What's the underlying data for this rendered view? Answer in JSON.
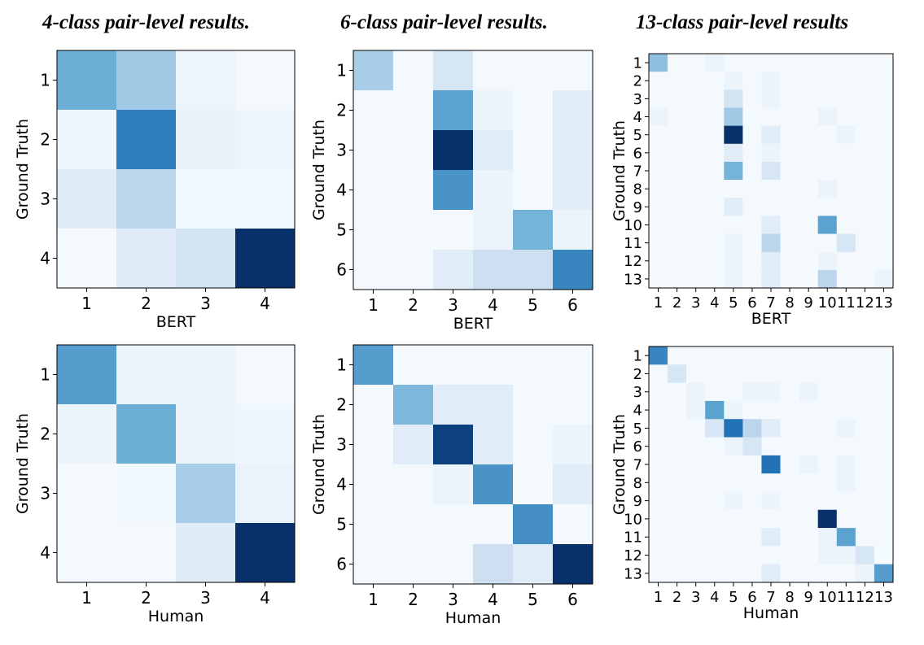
{
  "titles": {
    "col1": "4-class pair-level results.",
    "col2": "6-class pair-level results.",
    "col3": "13-class pair-level results"
  },
  "colors": {
    "low": "#f7fbff",
    "high": "#08306b"
  },
  "chart_data": [
    {
      "type": "heatmap",
      "title": "4-class pair-level results.",
      "xlabel": "BERT",
      "ylabel": "Ground Truth",
      "x_ticks": [
        "1",
        "2",
        "3",
        "4"
      ],
      "y_ticks": [
        "1",
        "2",
        "3",
        "4"
      ],
      "values": [
        [
          0.55,
          0.4,
          0.06,
          0.02
        ],
        [
          0.05,
          0.75,
          0.09,
          0.06
        ],
        [
          0.15,
          0.33,
          0.04,
          0.04
        ],
        [
          0.02,
          0.15,
          0.22,
          1.0
        ]
      ]
    },
    {
      "type": "heatmap",
      "title": "6-class pair-level results.",
      "xlabel": "BERT",
      "ylabel": "Ground Truth",
      "x_ticks": [
        "1",
        "2",
        "3",
        "4",
        "5",
        "6"
      ],
      "y_ticks": [
        "1",
        "2",
        "3",
        "4",
        "5",
        "6"
      ],
      "values": [
        [
          0.38,
          0.02,
          0.2,
          0.02,
          0.02,
          0.02
        ],
        [
          0.02,
          0.02,
          0.6,
          0.07,
          0.02,
          0.14
        ],
        [
          0.02,
          0.02,
          1.0,
          0.14,
          0.02,
          0.14
        ],
        [
          0.02,
          0.02,
          0.66,
          0.07,
          0.02,
          0.14
        ],
        [
          0.02,
          0.02,
          0.02,
          0.07,
          0.52,
          0.07
        ],
        [
          0.02,
          0.02,
          0.14,
          0.26,
          0.26,
          0.72
        ]
      ]
    },
    {
      "type": "heatmap",
      "title": "13-class pair-level results",
      "xlabel": "BERT",
      "ylabel": "Ground Truth",
      "x_ticks": [
        "1",
        "2",
        "3",
        "4",
        "5",
        "6",
        "7",
        "8",
        "9",
        "10",
        "11",
        "12",
        "13"
      ],
      "y_ticks": [
        "1",
        "2",
        "3",
        "4",
        "5",
        "6",
        "7",
        "8",
        "9",
        "10",
        "11",
        "12",
        "13"
      ],
      "values": [
        [
          0.45,
          0.02,
          0.02,
          0.07,
          0.02,
          0.02,
          0.02,
          0.02,
          0.02,
          0.02,
          0.02,
          0.02,
          0.02
        ],
        [
          0.02,
          0.02,
          0.02,
          0.02,
          0.07,
          0.02,
          0.07,
          0.02,
          0.02,
          0.02,
          0.02,
          0.02,
          0.02
        ],
        [
          0.02,
          0.02,
          0.02,
          0.02,
          0.22,
          0.02,
          0.07,
          0.02,
          0.02,
          0.02,
          0.02,
          0.02,
          0.02
        ],
        [
          0.07,
          0.02,
          0.02,
          0.02,
          0.4,
          0.02,
          0.02,
          0.02,
          0.02,
          0.07,
          0.02,
          0.02,
          0.02
        ],
        [
          0.02,
          0.02,
          0.02,
          0.02,
          1.0,
          0.02,
          0.14,
          0.02,
          0.02,
          0.02,
          0.07,
          0.02,
          0.02
        ],
        [
          0.02,
          0.02,
          0.02,
          0.02,
          0.14,
          0.02,
          0.07,
          0.02,
          0.02,
          0.02,
          0.02,
          0.02,
          0.02
        ],
        [
          0.02,
          0.02,
          0.02,
          0.02,
          0.52,
          0.02,
          0.2,
          0.02,
          0.02,
          0.02,
          0.02,
          0.02,
          0.02
        ],
        [
          0.02,
          0.02,
          0.02,
          0.02,
          0.02,
          0.02,
          0.02,
          0.02,
          0.02,
          0.07,
          0.02,
          0.02,
          0.02
        ],
        [
          0.02,
          0.02,
          0.02,
          0.02,
          0.14,
          0.02,
          0.02,
          0.02,
          0.02,
          0.02,
          0.02,
          0.02,
          0.02
        ],
        [
          0.02,
          0.02,
          0.02,
          0.02,
          0.02,
          0.02,
          0.14,
          0.02,
          0.02,
          0.6,
          0.02,
          0.02,
          0.02
        ],
        [
          0.02,
          0.02,
          0.02,
          0.02,
          0.07,
          0.02,
          0.33,
          0.02,
          0.02,
          0.02,
          0.2,
          0.02,
          0.02
        ],
        [
          0.02,
          0.02,
          0.02,
          0.02,
          0.07,
          0.02,
          0.14,
          0.02,
          0.02,
          0.07,
          0.02,
          0.02,
          0.02
        ],
        [
          0.02,
          0.02,
          0.02,
          0.02,
          0.07,
          0.02,
          0.14,
          0.02,
          0.02,
          0.33,
          0.02,
          0.02,
          0.07
        ]
      ]
    },
    {
      "type": "heatmap",
      "title": "",
      "xlabel": "Human",
      "ylabel": "Ground Truth",
      "x_ticks": [
        "1",
        "2",
        "3",
        "4"
      ],
      "y_ticks": [
        "1",
        "2",
        "3",
        "4"
      ],
      "values": [
        [
          0.62,
          0.07,
          0.07,
          0.02
        ],
        [
          0.07,
          0.55,
          0.07,
          0.05
        ],
        [
          0.02,
          0.04,
          0.38,
          0.08
        ],
        [
          0.02,
          0.02,
          0.15,
          1.0
        ]
      ]
    },
    {
      "type": "heatmap",
      "title": "",
      "xlabel": "Human",
      "ylabel": "Ground Truth",
      "x_ticks": [
        "1",
        "2",
        "3",
        "4",
        "5",
        "6"
      ],
      "y_ticks": [
        "1",
        "2",
        "3",
        "4",
        "5",
        "6"
      ],
      "values": [
        [
          0.62,
          0.02,
          0.02,
          0.02,
          0.02,
          0.02
        ],
        [
          0.02,
          0.5,
          0.14,
          0.14,
          0.02,
          0.02
        ],
        [
          0.02,
          0.14,
          0.95,
          0.14,
          0.02,
          0.07
        ],
        [
          0.02,
          0.02,
          0.07,
          0.66,
          0.02,
          0.14
        ],
        [
          0.02,
          0.02,
          0.02,
          0.02,
          0.68,
          0.02
        ],
        [
          0.02,
          0.02,
          0.02,
          0.26,
          0.14,
          1.0
        ]
      ]
    },
    {
      "type": "heatmap",
      "title": "",
      "xlabel": "Human",
      "ylabel": "Ground Truth",
      "x_ticks": [
        "1",
        "2",
        "3",
        "4",
        "5",
        "6",
        "7",
        "8",
        "9",
        "10",
        "11",
        "12",
        "13"
      ],
      "y_ticks": [
        "1",
        "2",
        "3",
        "4",
        "5",
        "6",
        "7",
        "8",
        "9",
        "10",
        "11",
        "12",
        "13"
      ],
      "values": [
        [
          0.72,
          0.02,
          0.02,
          0.02,
          0.02,
          0.02,
          0.02,
          0.02,
          0.02,
          0.02,
          0.02,
          0.02,
          0.02
        ],
        [
          0.02,
          0.2,
          0.02,
          0.02,
          0.02,
          0.02,
          0.02,
          0.02,
          0.02,
          0.02,
          0.02,
          0.02,
          0.02
        ],
        [
          0.02,
          0.02,
          0.07,
          0.02,
          0.02,
          0.07,
          0.07,
          0.02,
          0.07,
          0.02,
          0.02,
          0.02,
          0.02
        ],
        [
          0.02,
          0.02,
          0.07,
          0.6,
          0.07,
          0.02,
          0.02,
          0.02,
          0.02,
          0.02,
          0.02,
          0.02,
          0.02
        ],
        [
          0.02,
          0.02,
          0.02,
          0.2,
          0.8,
          0.33,
          0.14,
          0.02,
          0.02,
          0.02,
          0.07,
          0.02,
          0.02
        ],
        [
          0.02,
          0.02,
          0.02,
          0.02,
          0.07,
          0.2,
          0.02,
          0.02,
          0.02,
          0.02,
          0.02,
          0.02,
          0.02
        ],
        [
          0.02,
          0.02,
          0.02,
          0.02,
          0.02,
          0.02,
          0.8,
          0.02,
          0.07,
          0.02,
          0.07,
          0.02,
          0.02
        ],
        [
          0.02,
          0.02,
          0.02,
          0.02,
          0.02,
          0.02,
          0.02,
          0.02,
          0.02,
          0.02,
          0.07,
          0.02,
          0.02
        ],
        [
          0.02,
          0.02,
          0.02,
          0.02,
          0.07,
          0.02,
          0.07,
          0.02,
          0.02,
          0.02,
          0.02,
          0.02,
          0.02
        ],
        [
          0.02,
          0.02,
          0.02,
          0.02,
          0.02,
          0.02,
          0.02,
          0.02,
          0.02,
          1.0,
          0.02,
          0.02,
          0.02
        ],
        [
          0.02,
          0.02,
          0.02,
          0.02,
          0.02,
          0.02,
          0.14,
          0.02,
          0.02,
          0.07,
          0.6,
          0.02,
          0.02
        ],
        [
          0.02,
          0.02,
          0.02,
          0.02,
          0.02,
          0.02,
          0.02,
          0.02,
          0.02,
          0.07,
          0.07,
          0.2,
          0.02
        ],
        [
          0.02,
          0.02,
          0.02,
          0.02,
          0.02,
          0.02,
          0.14,
          0.02,
          0.02,
          0.02,
          0.02,
          0.07,
          0.62
        ]
      ]
    }
  ]
}
